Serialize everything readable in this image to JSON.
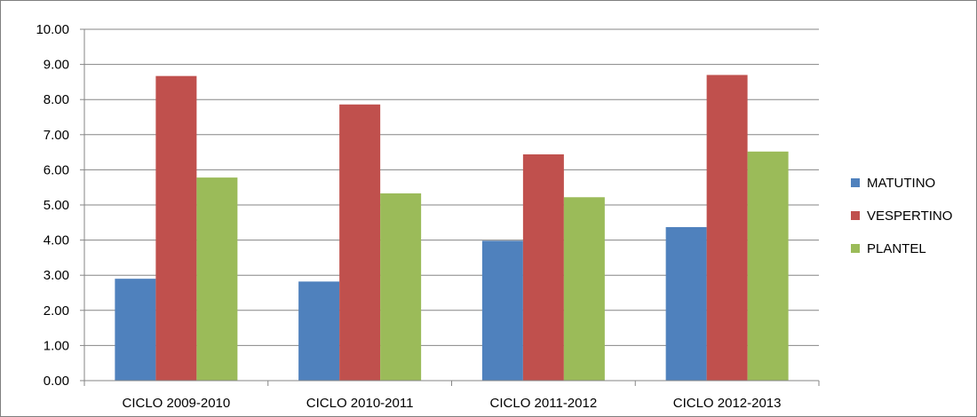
{
  "chart_data": {
    "type": "bar",
    "title": "",
    "xlabel": "",
    "ylabel": "",
    "categories": [
      "CICLO 2009-2010",
      "CICLO 2010-2011",
      "CICLO 2011-2012",
      "CICLO 2012-2013"
    ],
    "series": [
      {
        "name": "MATUTINO",
        "color": "#4f81bd",
        "values": [
          2.9,
          2.82,
          3.98,
          4.37
        ]
      },
      {
        "name": "VESPERTINO",
        "color": "#c0504d",
        "values": [
          8.67,
          7.86,
          6.44,
          8.7
        ]
      },
      {
        "name": "PLANTEL",
        "color": "#9bbb59",
        "values": [
          5.78,
          5.33,
          5.22,
          6.52
        ]
      }
    ],
    "ylim": [
      0,
      10
    ],
    "yticks": [
      "0.00",
      "1.00",
      "2.00",
      "3.00",
      "4.00",
      "5.00",
      "6.00",
      "7.00",
      "8.00",
      "9.00",
      "10.00"
    ],
    "grid": true,
    "legend_position": "right"
  }
}
